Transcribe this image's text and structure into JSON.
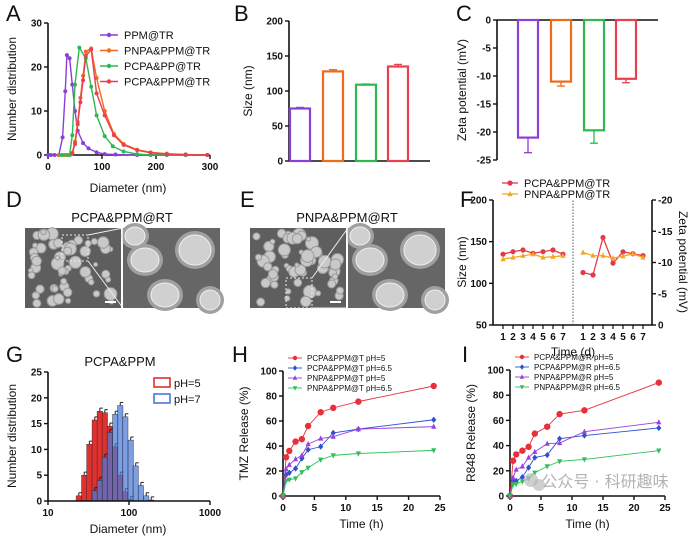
{
  "chart_data": [
    {
      "panel": "A",
      "type": "line",
      "xlabel": "Diameter (nm)",
      "ylabel": "Number distribution",
      "xlim": [
        0,
        300
      ],
      "ylim": [
        0,
        30
      ],
      "xticks": [
        0,
        100,
        200,
        300
      ],
      "yticks": [
        0,
        10,
        20,
        30
      ],
      "legend": "top-right",
      "series": [
        {
          "name": "PPM@TR",
          "color": "#8b3fd6",
          "points": [
            [
              0,
              0
            ],
            [
              5,
              0
            ],
            [
              12,
              0
            ],
            [
              20,
              0
            ],
            [
              27,
              4
            ],
            [
              32,
              14.5
            ],
            [
              35,
              22.7
            ],
            [
              40,
              22
            ],
            [
              45,
              16
            ],
            [
              50,
              10
            ],
            [
              55,
              5.5
            ],
            [
              65,
              2.7
            ],
            [
              75,
              1.5
            ],
            [
              90,
              0.6
            ],
            [
              105,
              0.2
            ],
            [
              125,
              0.1
            ],
            [
              165,
              0
            ],
            [
              190,
              0
            ],
            [
              220,
              0
            ],
            [
              255,
              0
            ],
            [
              295,
              0
            ]
          ]
        },
        {
          "name": "PNPA&PPM@TR",
          "color": "#ee6b1c",
          "points": [
            [
              20,
              0
            ],
            [
              30,
              0
            ],
            [
              40,
              0
            ],
            [
              45,
              0.5
            ],
            [
              50,
              3
            ],
            [
              55,
              7.5
            ],
            [
              60,
              13
            ],
            [
              65,
              18
            ],
            [
              70,
              23.5
            ],
            [
              80,
              24.2
            ],
            [
              90,
              17.5
            ],
            [
              105,
              10
            ],
            [
              122,
              4.8
            ],
            [
              140,
              2.5
            ],
            [
              165,
              1.2
            ],
            [
              190,
              0.6
            ],
            [
              220,
              0.3
            ],
            [
              255,
              0.1
            ],
            [
              295,
              0
            ]
          ]
        },
        {
          "name": "PCPA&PP@TR",
          "color": "#2fb84f",
          "points": [
            [
              25,
              0
            ],
            [
              35,
              0
            ],
            [
              40,
              0
            ],
            [
              45,
              4.5
            ],
            [
              50,
              16
            ],
            [
              58,
              24.4
            ],
            [
              70,
              22
            ],
            [
              80,
              15.5
            ],
            [
              90,
              9
            ],
            [
              105,
              4.3
            ],
            [
              120,
              2
            ],
            [
              140,
              0.8
            ],
            [
              165,
              0.2
            ],
            [
              190,
              0
            ],
            [
              220,
              0
            ],
            [
              255,
              0
            ],
            [
              295,
              0
            ]
          ]
        },
        {
          "name": "PCPA&PPM@TR",
          "color": "#e8404f",
          "points": [
            [
              45,
              0.3
            ],
            [
              50,
              2.5
            ],
            [
              55,
              7
            ],
            [
              60,
              12
            ],
            [
              65,
              17
            ],
            [
              70,
              22.5
            ],
            [
              80,
              24
            ],
            [
              90,
              14
            ],
            [
              105,
              9
            ],
            [
              122,
              4.5
            ],
            [
              140,
              2.3
            ],
            [
              165,
              1.1
            ],
            [
              190,
              0.5
            ],
            [
              220,
              0.2
            ],
            [
              255,
              0.1
            ],
            [
              295,
              0
            ]
          ]
        }
      ]
    },
    {
      "panel": "B",
      "type": "bar",
      "ylabel": "Size (nm)",
      "ylim": [
        0,
        200
      ],
      "yticks": [
        0,
        50,
        100,
        150,
        200
      ],
      "values": [
        75,
        128,
        109,
        135
      ],
      "errors": [
        1.5,
        2.5,
        1,
        3
      ],
      "colors": [
        "#8b3fd6",
        "#ee6b1c",
        "#2fb84f",
        "#e8404f"
      ]
    },
    {
      "panel": "C",
      "type": "bar",
      "ylabel": "Zeta potential (mV)",
      "ylim": [
        -25,
        0
      ],
      "yticks": [
        0,
        -5,
        -10,
        -15,
        -20,
        -25
      ],
      "values": [
        -21,
        -11,
        -19.7,
        -10.5
      ],
      "errors": [
        2.7,
        0.8,
        2.3,
        0.7
      ],
      "colors": [
        "#8b3fd6",
        "#ee6b1c",
        "#2fb84f",
        "#e8404f"
      ]
    },
    {
      "panel": "F",
      "type": "line",
      "xlabel": "Time (d)",
      "xticks": [
        "1",
        "2",
        "3",
        "4",
        "5",
        "6",
        "7"
      ],
      "ylabel": "Size (nm)",
      "ylim": [
        50,
        200
      ],
      "yticks": [
        50,
        100,
        150,
        200
      ],
      "y2label": "Zeta potential (mV)",
      "y2lim": [
        0,
        -20
      ],
      "y2ticks": [
        0,
        -5,
        -10,
        -15,
        -20
      ],
      "legend": "top-left",
      "series": [
        {
          "name": "PCPA&PPM@TR",
          "color": "#e23a4a",
          "marker": "circle",
          "size": [
            135,
            138,
            140,
            136,
            138,
            140,
            135
          ],
          "zeta": [
            -8.4,
            -8,
            -14,
            -9.9,
            -11.7,
            -11.4,
            -11.1
          ]
        },
        {
          "name": "PNPA&PPM@TR",
          "color": "#f5a623",
          "marker": "triangle",
          "size": [
            129,
            131,
            133,
            135,
            131,
            132,
            133
          ],
          "zeta": [
            -11.6,
            -11.1,
            -11.1,
            -10.7,
            -11,
            -11.4,
            -10.8
          ]
        }
      ]
    },
    {
      "panel": "G",
      "type": "bar",
      "title": "PCPA&PPM",
      "xlabel": "Diameter (nm)",
      "ylabel": "Number distribution",
      "xscale": "log",
      "xlim": [
        10,
        1000
      ],
      "xticks": [
        10,
        100,
        1000
      ],
      "ylim": [
        0,
        25
      ],
      "yticks": [
        0,
        5,
        10,
        15,
        20,
        25
      ],
      "legend": "top-right",
      "bins": [
        24,
        28,
        32.4,
        37.8,
        43.6,
        50.3,
        58,
        67.6,
        78,
        90,
        105,
        121,
        140,
        163,
        188
      ],
      "series": [
        {
          "name": "pH=5",
          "color": "#e03030",
          "values": [
            1,
            5,
            11,
            15.7,
            17.4,
            17.1,
            14.5,
            10.5,
            5,
            1.8,
            0.3,
            0,
            0,
            0,
            0
          ]
        },
        {
          "name": "pH=7",
          "color": "#4a78d8",
          "values": [
            0,
            0,
            0,
            2,
            4,
            8.5,
            13.3,
            16.8,
            18.5,
            16.3,
            11.8,
            6.8,
            3,
            1,
            0.2
          ]
        }
      ]
    },
    {
      "panel": "H",
      "type": "line",
      "xlabel": "Time (h)",
      "ylabel": "TMZ Release (%)",
      "xlim": [
        0,
        25
      ],
      "ylim": [
        0,
        100
      ],
      "xticks": [
        0,
        5,
        10,
        15,
        20,
        25
      ],
      "yticks": [
        0,
        20,
        40,
        60,
        80,
        100
      ],
      "legend": "top-left",
      "x": [
        0,
        0.5,
        1,
        2,
        3,
        4,
        6,
        8,
        12,
        24
      ],
      "series": [
        {
          "name": "PCPA&PPM@T pH=5",
          "color": "#e8303a",
          "marker": "circle",
          "values": [
            0,
            31,
            36,
            43.5,
            45.5,
            56,
            67,
            70.5,
            75.5,
            88
          ]
        },
        {
          "name": "PCPA&PPM@T pH=6.5",
          "color": "#2f4fd0",
          "marker": "diamond",
          "values": [
            0,
            17,
            18.5,
            22,
            30,
            37,
            39.5,
            50.5,
            53.5,
            61
          ]
        },
        {
          "name": "PNPA&PPM@T pH=5",
          "color": "#9a3fe0",
          "marker": "triangle",
          "values": [
            0,
            21.5,
            25,
            29.5,
            32.5,
            41.5,
            46,
            47.5,
            53.5,
            55.5
          ]
        },
        {
          "name": "PNPA&PPM@T pH=6.5",
          "color": "#2fbf5a",
          "marker": "triangle-down",
          "values": [
            0,
            12,
            13,
            14,
            19,
            22.5,
            29,
            32.5,
            34,
            36.5
          ]
        }
      ]
    },
    {
      "panel": "I",
      "type": "line",
      "xlabel": "Time (h)",
      "ylabel": "R848 Release (%)",
      "xlim": [
        0,
        25
      ],
      "ylim": [
        0,
        100
      ],
      "xticks": [
        0,
        5,
        10,
        15,
        20,
        25
      ],
      "yticks": [
        0,
        20,
        40,
        60,
        80,
        100
      ],
      "legend": "top-left",
      "x": [
        0,
        0.5,
        1,
        2,
        3,
        4,
        6,
        8,
        12,
        24
      ],
      "series": [
        {
          "name": "PCPA&PPM@R pH=5",
          "color": "#e8303a",
          "marker": "circle",
          "values": [
            0,
            28,
            33,
            36,
            39,
            49.5,
            55,
            65,
            68,
            90
          ]
        },
        {
          "name": "PCPA&PPM@R pH=6.5",
          "color": "#2f4fd0",
          "marker": "diamond",
          "values": [
            0,
            12,
            12,
            15,
            22.5,
            30.5,
            32.5,
            45.5,
            48,
            54
          ]
        },
        {
          "name": "PNPA&PPM@R pH=5",
          "color": "#9a3fe0",
          "marker": "triangle",
          "values": [
            0,
            14.5,
            21,
            23.5,
            30.5,
            35,
            41.5,
            42,
            51,
            58.5
          ]
        },
        {
          "name": "PNPA&PPM@R pH=6.5",
          "color": "#2fbf5a",
          "marker": "triangle-down",
          "values": [
            0,
            9,
            9.5,
            11.5,
            14,
            18.5,
            23.5,
            27.5,
            29,
            36
          ]
        }
      ]
    }
  ],
  "images": [
    {
      "panel": "D",
      "title": "PCPA&PPM@RT"
    },
    {
      "panel": "E",
      "title": "PNPA&PPM@RT"
    }
  ],
  "watermark": "公众号 · 科研趣味"
}
